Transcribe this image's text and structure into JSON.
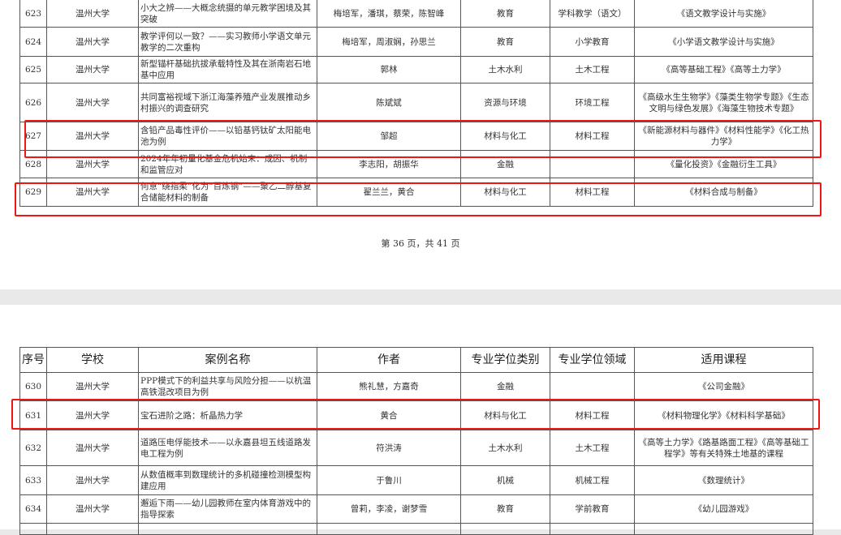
{
  "columns": [
    "序号",
    "学校",
    "案例名称",
    "作者",
    "专业学位类别",
    "专业学位领域",
    "适用课程"
  ],
  "page1": {
    "rows": [
      [
        "623",
        "温州大学",
        "小大之辨——大概念统摄的单元教学困境及其突破",
        "梅培军，潘琪，蔡荣，陈智峰",
        "教育",
        "学科教学（语文）",
        "《语文教学设计与实施》"
      ],
      [
        "624",
        "温州大学",
        "教学评何以一致？——实习教师小学语文单元教学的二次重构",
        "梅培军，周淑娴，孙思兰",
        "教育",
        "小学教育",
        "《小学语文教学设计与实施》"
      ],
      [
        "625",
        "温州大学",
        "新型锚杆基础抗拔承载特性及其在浙南岩石地基中应用",
        "郭林",
        "土木水利",
        "土木工程",
        "《高等基础工程》《高等土力学》"
      ],
      [
        "626",
        "温州大学",
        "共同富裕视域下浙江海藻养殖产业发展推动乡村振兴的调查研究",
        "陈斌斌",
        "资源与环境",
        "环境工程",
        "《高级水生生物学》《藻类生物学专题》《生态文明与绿色发展》《海藻生物技术专题》"
      ],
      [
        "627",
        "温州大学",
        "含铅产品毒性评价——以铅基钙钛矿太阳能电池为例",
        "邹超",
        "材料与化工",
        "材料工程",
        "《新能源材料与器件》《材料性能学》《化工热力学》"
      ],
      [
        "628",
        "温州大学",
        "2024年年初量化基金危机始末：成因、机制和监管应对",
        "李志阳，胡振华",
        "金融",
        "",
        "《量化投资》《金融衍生工具》"
      ],
      [
        "629",
        "温州大学",
        "何意“绕指柔”化为“百炼钢”——聚乙二醇基复合储能材料的制备",
        "翟兰兰，黄合",
        "材料与化工",
        "材料工程",
        "《材料合成与制备》"
      ]
    ],
    "page_number": "第 36 页，共 41 页"
  },
  "page2": {
    "rows": [
      [
        "630",
        "温州大学",
        "PPP模式下的利益共享与风险分担——以杭温高铁混改项目为例",
        "熊礼慧，方嘉奇",
        "金融",
        "",
        "《公司金融》"
      ],
      [
        "631",
        "温州大学",
        "宝石进阶之路：析晶热力学",
        "黄合",
        "材料与化工",
        "材料工程",
        "《材料物理化学》《材料科学基础》"
      ],
      [
        "632",
        "温州大学",
        "道路压电俘能技术——以永嘉县坦五线道路发电工程为例",
        "符洪涛",
        "土木水利",
        "土木工程",
        "《高等土力学》《路基路面工程》《高等基础工程学》等有关特殊土地基的课程"
      ],
      [
        "633",
        "温州大学",
        "从数值概率到数理统计的多机碰撞检测模型构建应用",
        "于鲁川",
        "机械",
        "机械工程",
        "《数理统计》"
      ],
      [
        "634",
        "温州大学",
        "邂逅下雨——幼儿园教师在室内体育游戏中的指导探索",
        "曾莉，李凌，谢梦雪",
        "教育",
        "学前教育",
        "《幼儿园游戏》"
      ]
    ]
  },
  "highlight_color": "#f01616"
}
